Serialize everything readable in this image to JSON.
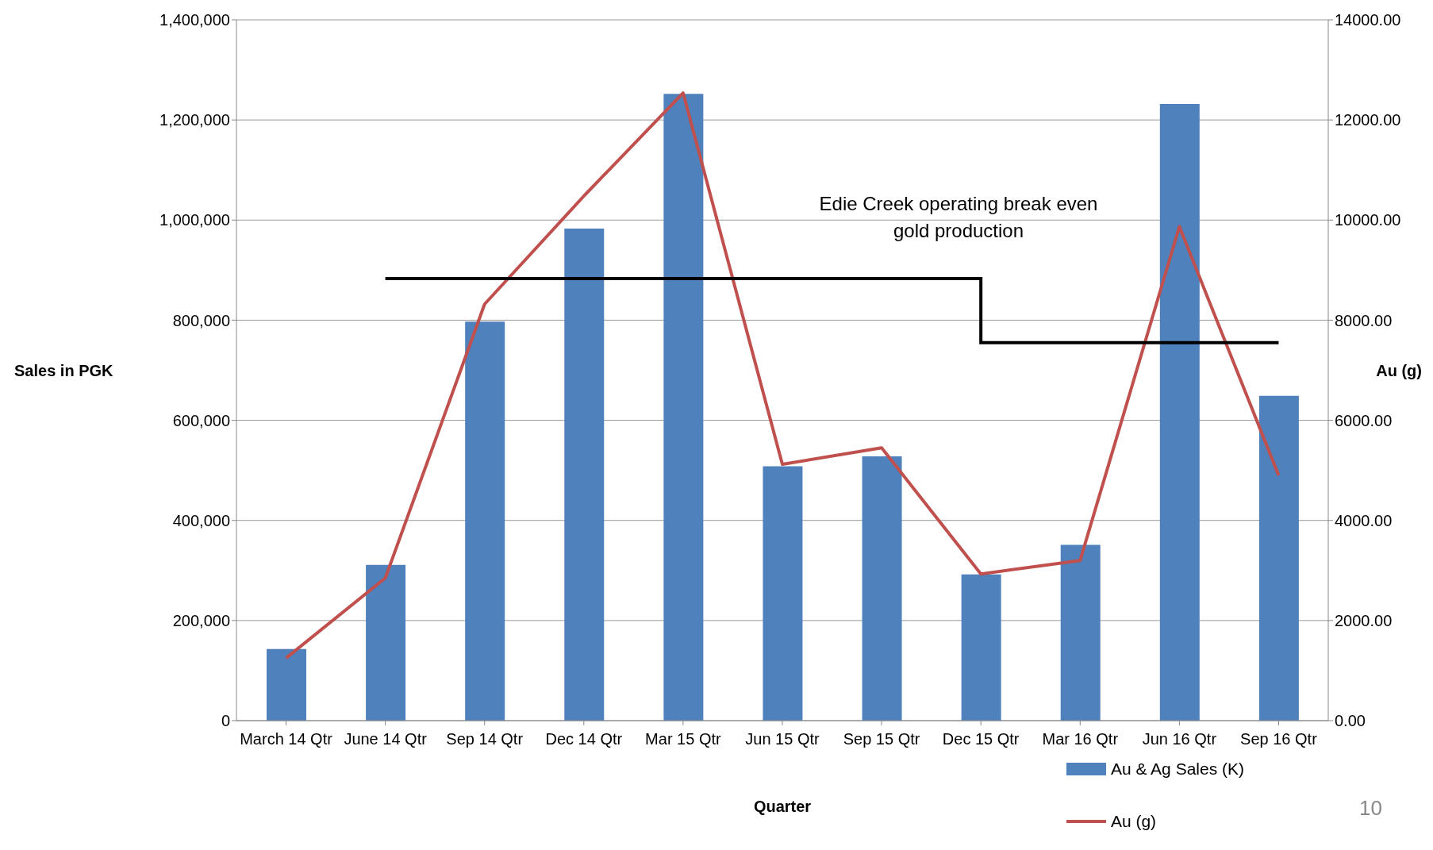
{
  "chart_data": {
    "type": "bar",
    "xlabel": "Quarter",
    "ylabel": "Sales in PGK",
    "y2label": "Au (g)",
    "categories": [
      "March 14 Qtr",
      "June 14 Qtr",
      "Sep 14 Qtr",
      "Dec 14 Qtr",
      "Mar 15 Qtr",
      "Jun 15 Qtr",
      "Sep 15 Qtr",
      "Dec 15 Qtr",
      "Mar 16 Qtr",
      "Jun 16 Qtr",
      "Sep 16 Qtr"
    ],
    "series": [
      {
        "name": "Au & Ag Sales (K)",
        "color": "#4f81bd",
        "values": [
          143000,
          311000,
          797000,
          983000,
          1252000,
          508000,
          528000,
          292000,
          351000,
          1232000,
          649000
        ]
      },
      {
        "name": "Au (g)",
        "type": "line",
        "axis": "y2",
        "color": "#c0504d",
        "values": [
          1250,
          2850,
          8320,
          10480,
          12540,
          5120,
          5450,
          2930,
          3200,
          9870,
          4900
        ]
      },
      {
        "type": "step",
        "axis": "y2",
        "color": "#000000",
        "values": [
          null,
          8830,
          8830,
          8830,
          8830,
          8830,
          8830,
          7550,
          7550,
          7550,
          7550
        ]
      }
    ],
    "ylim": [
      0,
      1400000
    ],
    "yticks": [
      {
        "value": 0,
        "label": "0"
      },
      {
        "value": 200000,
        "label": "200,000"
      },
      {
        "value": 400000,
        "label": "400,000"
      },
      {
        "value": 600000,
        "label": "600,000"
      },
      {
        "value": 800000,
        "label": "800,000"
      },
      {
        "value": 1000000,
        "label": "1,000,000"
      },
      {
        "value": 1200000,
        "label": "1,200,000"
      },
      {
        "value": 1400000,
        "label": "1,400,000"
      }
    ],
    "y2lim": [
      0,
      14000
    ],
    "y2ticks": [
      {
        "value": 0,
        "label": "0.00"
      },
      {
        "value": 2000,
        "label": "2000.00"
      },
      {
        "value": 4000,
        "label": "4000.00"
      },
      {
        "value": 6000,
        "label": "6000.00"
      },
      {
        "value": 8000,
        "label": "8000.00"
      },
      {
        "value": 10000,
        "label": "10000.00"
      },
      {
        "value": 12000,
        "label": "12000.00"
      },
      {
        "value": 14000,
        "label": "14000.00"
      }
    ],
    "grid": "y",
    "legend": "bottom right",
    "annotations": [
      "Edie Creek operating break even gold production",
      "10"
    ]
  }
}
